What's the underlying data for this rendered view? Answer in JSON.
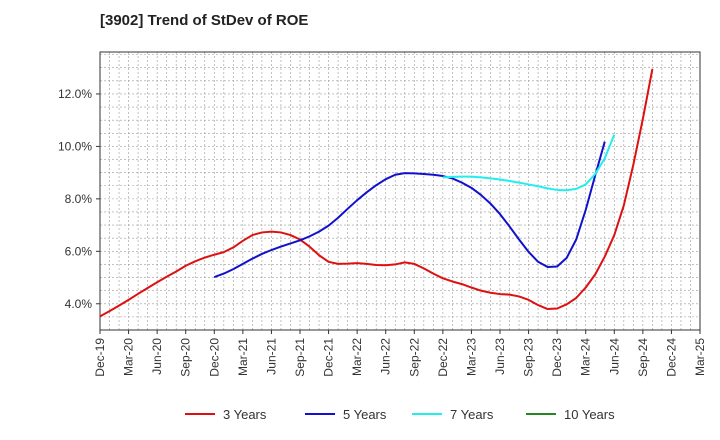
{
  "chart_data": {
    "type": "line",
    "title": "[3902]  Trend of StDev of ROE",
    "xlabel": "",
    "ylabel": "",
    "x_ticks": [
      "Dec-19",
      "Mar-20",
      "Jun-20",
      "Sep-20",
      "Dec-20",
      "Mar-21",
      "Jun-21",
      "Sep-21",
      "Dec-21",
      "Mar-22",
      "Jun-22",
      "Sep-22",
      "Dec-22",
      "Mar-23",
      "Jun-23",
      "Sep-23",
      "Dec-23",
      "Mar-24",
      "Jun-24",
      "Sep-24",
      "Dec-24",
      "Mar-25"
    ],
    "y_ticks": [
      "4.0%",
      "6.0%",
      "8.0%",
      "10.0%",
      "12.0%"
    ],
    "y_tick_values": [
      4,
      6,
      8,
      10,
      12
    ],
    "ylim": [
      3.0,
      13.6
    ],
    "grid": true,
    "legend_position": "bottom",
    "series": [
      {
        "name": "3 Years",
        "color": "#dd1111",
        "points": [
          [
            "Dec-19",
            3.52
          ],
          [
            "Jan-20",
            3.72
          ],
          [
            "Feb-20",
            3.93
          ],
          [
            "Mar-20",
            4.15
          ],
          [
            "Apr-20",
            4.38
          ],
          [
            "May-20",
            4.6
          ],
          [
            "Jun-20",
            4.82
          ],
          [
            "Jul-20",
            5.03
          ],
          [
            "Aug-20",
            5.23
          ],
          [
            "Sep-20",
            5.45
          ],
          [
            "Oct-20",
            5.62
          ],
          [
            "Nov-20",
            5.76
          ],
          [
            "Dec-20",
            5.87
          ],
          [
            "Jan-21",
            5.97
          ],
          [
            "Feb-21",
            6.15
          ],
          [
            "Mar-21",
            6.4
          ],
          [
            "Apr-21",
            6.62
          ],
          [
            "May-21",
            6.72
          ],
          [
            "Jun-21",
            6.75
          ],
          [
            "Jul-21",
            6.72
          ],
          [
            "Aug-21",
            6.62
          ],
          [
            "Sep-21",
            6.45
          ],
          [
            "Oct-21",
            6.18
          ],
          [
            "Nov-21",
            5.85
          ],
          [
            "Dec-21",
            5.6
          ],
          [
            "Jan-22",
            5.52
          ],
          [
            "Feb-22",
            5.53
          ],
          [
            "Mar-22",
            5.55
          ],
          [
            "Apr-22",
            5.52
          ],
          [
            "May-22",
            5.48
          ],
          [
            "Jun-22",
            5.47
          ],
          [
            "Jul-22",
            5.5
          ],
          [
            "Aug-22",
            5.58
          ],
          [
            "Sep-22",
            5.52
          ],
          [
            "Oct-22",
            5.35
          ],
          [
            "Nov-22",
            5.15
          ],
          [
            "Dec-22",
            4.97
          ],
          [
            "Jan-23",
            4.85
          ],
          [
            "Feb-23",
            4.75
          ],
          [
            "Mar-23",
            4.62
          ],
          [
            "Apr-23",
            4.5
          ],
          [
            "May-23",
            4.42
          ],
          [
            "Jun-23",
            4.37
          ],
          [
            "Jul-23",
            4.35
          ],
          [
            "Aug-23",
            4.28
          ],
          [
            "Sep-23",
            4.15
          ],
          [
            "Oct-23",
            3.95
          ],
          [
            "Nov-23",
            3.8
          ],
          [
            "Dec-23",
            3.82
          ],
          [
            "Jan-24",
            3.98
          ],
          [
            "Feb-24",
            4.22
          ],
          [
            "Mar-24",
            4.62
          ],
          [
            "Apr-24",
            5.12
          ],
          [
            "May-24",
            5.8
          ],
          [
            "Jun-24",
            6.62
          ],
          [
            "Jul-24",
            7.75
          ],
          [
            "Aug-24",
            9.3
          ],
          [
            "Sep-24",
            11.05
          ],
          [
            "Oct-24",
            12.95
          ]
        ]
      },
      {
        "name": "5 Years",
        "color": "#1111cc",
        "points": [
          [
            "Dec-20",
            5.02
          ],
          [
            "Jan-21",
            5.15
          ],
          [
            "Feb-21",
            5.32
          ],
          [
            "Mar-21",
            5.52
          ],
          [
            "Apr-21",
            5.72
          ],
          [
            "May-21",
            5.9
          ],
          [
            "Jun-21",
            6.05
          ],
          [
            "Jul-21",
            6.18
          ],
          [
            "Aug-21",
            6.3
          ],
          [
            "Sep-21",
            6.42
          ],
          [
            "Oct-21",
            6.57
          ],
          [
            "Nov-21",
            6.75
          ],
          [
            "Dec-21",
            6.98
          ],
          [
            "Jan-22",
            7.28
          ],
          [
            "Feb-22",
            7.62
          ],
          [
            "Mar-22",
            7.95
          ],
          [
            "Apr-22",
            8.25
          ],
          [
            "May-22",
            8.52
          ],
          [
            "Jun-22",
            8.75
          ],
          [
            "Jul-22",
            8.92
          ],
          [
            "Aug-22",
            8.98
          ],
          [
            "Sep-22",
            8.97
          ],
          [
            "Oct-22",
            8.95
          ],
          [
            "Nov-22",
            8.92
          ],
          [
            "Dec-22",
            8.87
          ],
          [
            "Jan-23",
            8.78
          ],
          [
            "Feb-23",
            8.62
          ],
          [
            "Mar-23",
            8.42
          ],
          [
            "Apr-23",
            8.15
          ],
          [
            "May-23",
            7.82
          ],
          [
            "Jun-23",
            7.42
          ],
          [
            "Jul-23",
            6.95
          ],
          [
            "Aug-23",
            6.45
          ],
          [
            "Sep-23",
            5.98
          ],
          [
            "Oct-23",
            5.6
          ],
          [
            "Nov-23",
            5.4
          ],
          [
            "Dec-23",
            5.42
          ],
          [
            "Jan-24",
            5.75
          ],
          [
            "Feb-24",
            6.45
          ],
          [
            "Mar-24",
            7.58
          ],
          [
            "Apr-24",
            8.9
          ],
          [
            "May-24",
            10.18
          ]
        ]
      },
      {
        "name": "7 Years",
        "color": "#22eeee",
        "points": [
          [
            "Dec-22",
            8.82
          ],
          [
            "Jan-23",
            8.84
          ],
          [
            "Feb-23",
            8.85
          ],
          [
            "Mar-23",
            8.85
          ],
          [
            "Apr-23",
            8.82
          ],
          [
            "May-23",
            8.78
          ],
          [
            "Jun-23",
            8.74
          ],
          [
            "Jul-23",
            8.68
          ],
          [
            "Aug-23",
            8.62
          ],
          [
            "Sep-23",
            8.55
          ],
          [
            "Oct-23",
            8.48
          ],
          [
            "Nov-23",
            8.4
          ],
          [
            "Dec-23",
            8.34
          ],
          [
            "Jan-24",
            8.33
          ],
          [
            "Feb-24",
            8.38
          ],
          [
            "Mar-24",
            8.55
          ],
          [
            "Apr-24",
            8.95
          ],
          [
            "May-24",
            9.55
          ],
          [
            "Jun-24",
            10.45
          ]
        ]
      },
      {
        "name": "10 Years",
        "color": "#228822",
        "points": []
      }
    ]
  }
}
